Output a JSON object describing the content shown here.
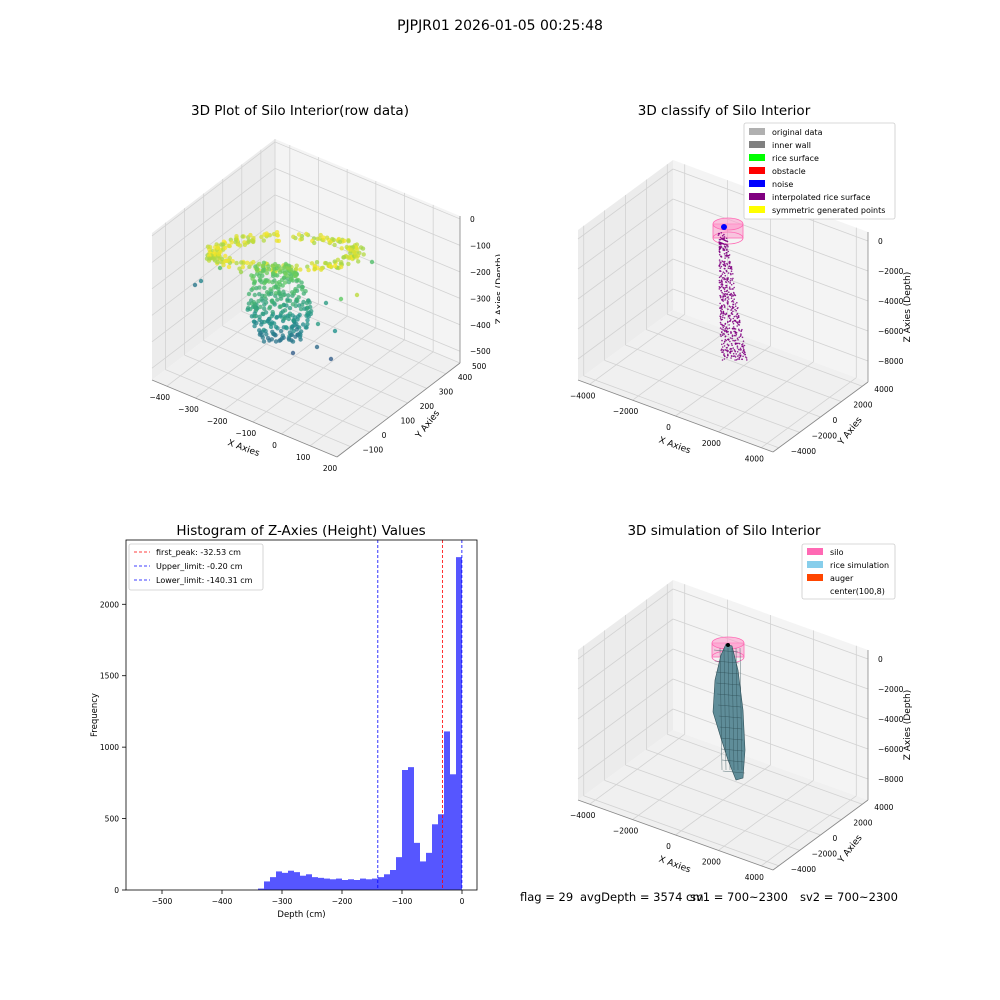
{
  "suptitle": "PJPJR01 2026-01-05 00:25:48",
  "chart_data": [
    {
      "type": "scatter",
      "subtype": "3d",
      "title": "3D Plot of Silo Interior(row data)",
      "xlabel": "X Axies",
      "ylabel": "Y Axies",
      "zlabel": "Z Axies (Depth)",
      "x_ticks": [
        "−400",
        "−300",
        "−200",
        "−100",
        "0",
        "100",
        "200"
      ],
      "y_ticks": [
        "−100",
        "0",
        "100",
        "200",
        "300",
        "400",
        "500"
      ],
      "z_ticks": [
        "0",
        "−100",
        "−200",
        "−300",
        "−400",
        "−500"
      ],
      "xlim": [
        -420,
        220
      ],
      "ylim": [
        -120,
        520
      ],
      "zlim": [
        -560,
        0
      ],
      "colormap": "viridis",
      "grid": true
    },
    {
      "type": "scatter",
      "subtype": "3d",
      "title": "3D classify of Silo Interior",
      "xlabel": "X Axies",
      "ylabel": "Y Axies",
      "zlabel": "Z Axies (Depth)",
      "x_ticks": [
        "−4000",
        "−2000",
        "0",
        "2000",
        "4000"
      ],
      "y_ticks": [
        "−4000",
        "−2000",
        "0",
        "2000",
        "4000"
      ],
      "z_ticks": [
        "0",
        "−2000",
        "−4000",
        "−6000",
        "−8000"
      ],
      "xlim": [
        -4500,
        4500
      ],
      "ylim": [
        -4500,
        4500
      ],
      "zlim": [
        -9000,
        0
      ],
      "legend_position": "upper-right",
      "legend": [
        {
          "label": "original data",
          "color": "#b0b0b0"
        },
        {
          "label": "inner wall",
          "color": "#808080"
        },
        {
          "label": "rice surface",
          "color": "#00ff00"
        },
        {
          "label": "obstacle",
          "color": "#ff0000"
        },
        {
          "label": "noise",
          "color": "#0000ff"
        },
        {
          "label": "interpolated rice surface",
          "color": "#800080"
        },
        {
          "label": "symmetric generated points",
          "color": "#ffff00"
        }
      ],
      "grid": true
    },
    {
      "type": "bar",
      "subtype": "histogram",
      "title": "Histogram of Z-Axies (Height) Values",
      "xlabel": "Depth (cm)",
      "ylabel": "Frequency",
      "xlim": [
        -560,
        25
      ],
      "ylim": [
        0,
        2450
      ],
      "x_ticks": [
        -500,
        -400,
        -300,
        -200,
        -100,
        0
      ],
      "x_tick_labels": [
        "−500",
        "−400",
        "−300",
        "−200",
        "−100",
        "0"
      ],
      "y_ticks": [
        0,
        500,
        1000,
        1500,
        2000
      ],
      "y_tick_labels": [
        "0",
        "500",
        "1000",
        "1500",
        "2000"
      ],
      "bin_width": 10,
      "bins": [
        {
          "left": -340,
          "count": 10
        },
        {
          "left": -330,
          "count": 60
        },
        {
          "left": -320,
          "count": 90
        },
        {
          "left": -310,
          "count": 130
        },
        {
          "left": -300,
          "count": 120
        },
        {
          "left": -290,
          "count": 135
        },
        {
          "left": -280,
          "count": 125
        },
        {
          "left": -270,
          "count": 100
        },
        {
          "left": -260,
          "count": 110
        },
        {
          "left": -250,
          "count": 90
        },
        {
          "left": -240,
          "count": 85
        },
        {
          "left": -230,
          "count": 80
        },
        {
          "left": -220,
          "count": 75
        },
        {
          "left": -210,
          "count": 80
        },
        {
          "left": -200,
          "count": 70
        },
        {
          "left": -190,
          "count": 75
        },
        {
          "left": -180,
          "count": 70
        },
        {
          "left": -170,
          "count": 80
        },
        {
          "left": -160,
          "count": 75
        },
        {
          "left": -150,
          "count": 80
        },
        {
          "left": -140,
          "count": 90
        },
        {
          "left": -130,
          "count": 110
        },
        {
          "left": -120,
          "count": 140
        },
        {
          "left": -110,
          "count": 230
        },
        {
          "left": -100,
          "count": 840
        },
        {
          "left": -90,
          "count": 860
        },
        {
          "left": -80,
          "count": 330
        },
        {
          "left": -70,
          "count": 200
        },
        {
          "left": -60,
          "count": 260
        },
        {
          "left": -50,
          "count": 460
        },
        {
          "left": -40,
          "count": 530
        },
        {
          "left": -30,
          "count": 1110
        },
        {
          "left": -20,
          "count": 810
        },
        {
          "left": -10,
          "count": 2330
        }
      ],
      "bar_color": "#4d4dff",
      "reference_lines": [
        {
          "label": "first_peak: -32.53 cm",
          "x": -32.53,
          "color": "#ff0000"
        },
        {
          "label": "Upper_limit: -0.20 cm",
          "x": -0.2,
          "color": "#0000ff"
        },
        {
          "label": "Lower_limit: -140.31 cm",
          "x": -140.31,
          "color": "#0000ff"
        }
      ],
      "legend_position": "upper-left"
    },
    {
      "type": "surface",
      "subtype": "3d",
      "title": "3D simulation of Silo Interior",
      "xlabel": "X Axies",
      "ylabel": "Y Axies",
      "zlabel": "Z Axies (Depth)",
      "x_ticks": [
        "−4000",
        "−2000",
        "0",
        "2000",
        "4000"
      ],
      "y_ticks": [
        "−4000",
        "−2000",
        "0",
        "2000",
        "4000"
      ],
      "z_ticks": [
        "0",
        "−2000",
        "−4000",
        "−6000",
        "−8000"
      ],
      "xlim": [
        -4500,
        4500
      ],
      "ylim": [
        -4500,
        4500
      ],
      "zlim": [
        -9000,
        0
      ],
      "legend_position": "upper-right",
      "legend": [
        {
          "label": "silo",
          "color": "#ff69b4"
        },
        {
          "label": "rice simulation",
          "color": "#87ceeb"
        },
        {
          "label": "auger",
          "color": "#ff4500"
        },
        {
          "label": "center(100,8)",
          "color": "#ffffff"
        }
      ],
      "grid": true
    }
  ],
  "footer": {
    "flag": "flag = 29",
    "avg": "avgDepth = 3574 cm",
    "sv1": "sv1 = 700~2300",
    "sv2": "sv2 = 700~2300"
  }
}
